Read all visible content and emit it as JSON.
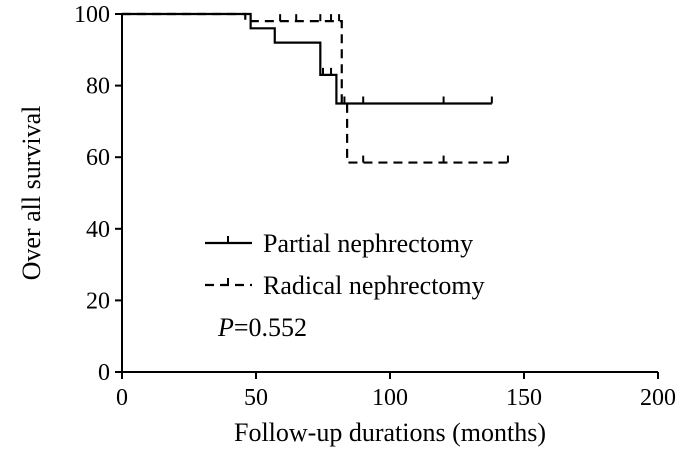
{
  "chart_data": {
    "type": "line",
    "subtype": "kaplan-meier",
    "title": "",
    "xlabel": "Follow-up durations (months)",
    "ylabel": "Over all survival",
    "xlim": [
      0,
      200
    ],
    "ylim": [
      0,
      100
    ],
    "xticks": [
      0,
      50,
      100,
      150,
      200
    ],
    "yticks": [
      0,
      20,
      40,
      60,
      80,
      100
    ],
    "grid": false,
    "legend_position": "lower-left",
    "annotation": {
      "italic": "P",
      "rest": "=0.552"
    },
    "series": [
      {
        "name": "Partial nephrectomy",
        "style": "solid",
        "color": "#000000",
        "steps": [
          [
            0,
            100
          ],
          [
            48,
            96
          ],
          [
            57,
            92
          ],
          [
            74,
            83
          ],
          [
            80,
            75
          ],
          [
            138,
            75
          ]
        ],
        "censored": [
          [
            75,
            83
          ],
          [
            78,
            83
          ],
          [
            83,
            75
          ],
          [
            90,
            75
          ],
          [
            120,
            75
          ],
          [
            138,
            75
          ]
        ]
      },
      {
        "name": "Radical nephrectomy",
        "style": "dashed",
        "color": "#000000",
        "steps": [
          [
            0,
            100
          ],
          [
            46,
            98
          ],
          [
            82,
            75
          ],
          [
            84,
            58.5
          ],
          [
            144,
            58.5
          ]
        ],
        "censored": [
          [
            59,
            98
          ],
          [
            65,
            98
          ],
          [
            74,
            98
          ],
          [
            78,
            98
          ],
          [
            81,
            98
          ],
          [
            90,
            58.5
          ],
          [
            120,
            58.5
          ],
          [
            144,
            58.5
          ]
        ]
      }
    ]
  }
}
